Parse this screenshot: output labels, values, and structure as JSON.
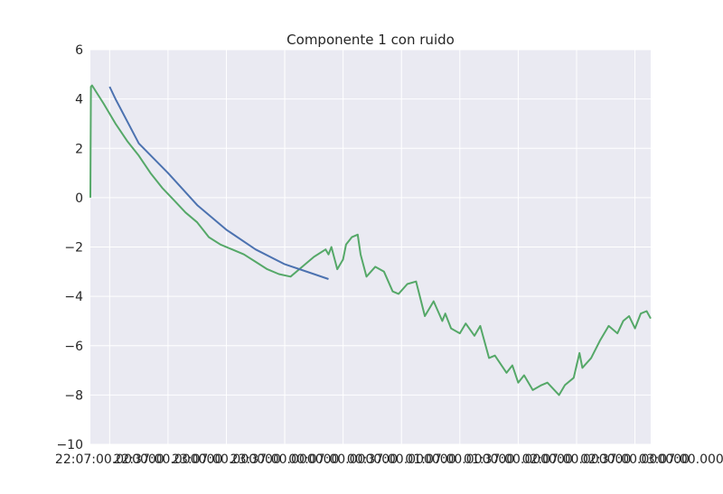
{
  "chart_data": {
    "type": "line",
    "title": "Componente 1 con ruido",
    "xlabel": "",
    "ylabel": "",
    "ylim": [
      -10,
      6
    ],
    "y_ticks": [
      6,
      4,
      2,
      0,
      -2,
      -4,
      -6,
      -8,
      -10
    ],
    "y_tick_labels": [
      "6",
      "4",
      "2",
      "0",
      "−2",
      "−4",
      "−6",
      "−8",
      "−10"
    ],
    "x_ticks": [
      0,
      1,
      2,
      3,
      4,
      5,
      6,
      7,
      8,
      9,
      10
    ],
    "x_tick_labels": [
      "22:07:00.000000",
      "22:37:00.000000",
      "23:07:00.000000",
      "23:37:00.000000",
      "00:07:00.000000",
      "00:37:00.000000",
      "01:07:00.000000",
      "01:37:00.000000",
      "02:07:00.000000",
      "02:37:00.000000",
      "03:07:00.000000"
    ],
    "xlim": [
      -0.33,
      9.27
    ],
    "grid": true,
    "background": "#eaeaf2",
    "series": [
      {
        "color": "#4c72b0",
        "x": [
          0.0,
          0.1,
          0.5,
          1.0,
          1.5,
          2.0,
          2.5,
          3.0,
          3.5,
          3.75
        ],
        "y": [
          4.5,
          4.0,
          2.2,
          1.0,
          -0.3,
          -1.3,
          -2.1,
          -2.7,
          -3.1,
          -3.3
        ]
      },
      {
        "color": "#55a868",
        "x": [
          -0.33,
          -0.32,
          -0.3,
          -0.1,
          0.1,
          0.3,
          0.5,
          0.7,
          0.9,
          1.1,
          1.3,
          1.5,
          1.7,
          1.9,
          2.1,
          2.3,
          2.5,
          2.7,
          2.9,
          3.1,
          3.3,
          3.5,
          3.7,
          3.75,
          3.8,
          3.9,
          4.0,
          4.05,
          4.15,
          4.25,
          4.3,
          4.4,
          4.55,
          4.7,
          4.85,
          4.95,
          5.1,
          5.25,
          5.4,
          5.55,
          5.7,
          5.75,
          5.85,
          6.0,
          6.1,
          6.25,
          6.35,
          6.5,
          6.6,
          6.8,
          6.9,
          7.0,
          7.1,
          7.25,
          7.4,
          7.5,
          7.7,
          7.8,
          7.95,
          8.05,
          8.1,
          8.25,
          8.4,
          8.55,
          8.7,
          8.8,
          8.9,
          9.0,
          9.1,
          9.2,
          9.27
        ],
        "y": [
          0.0,
          4.5,
          4.55,
          3.8,
          3.0,
          2.3,
          1.7,
          1.0,
          0.4,
          -0.1,
          -0.6,
          -1.0,
          -1.6,
          -1.9,
          -2.1,
          -2.3,
          -2.6,
          -2.9,
          -3.1,
          -3.2,
          -2.8,
          -2.4,
          -2.1,
          -2.3,
          -2.0,
          -2.9,
          -2.5,
          -1.9,
          -1.6,
          -1.5,
          -2.3,
          -3.2,
          -2.8,
          -3.0,
          -3.8,
          -3.9,
          -3.5,
          -3.4,
          -4.8,
          -4.2,
          -5.0,
          -4.7,
          -5.3,
          -5.5,
          -5.1,
          -5.6,
          -5.2,
          -6.5,
          -6.4,
          -7.1,
          -6.8,
          -7.5,
          -7.2,
          -7.8,
          -7.6,
          -7.5,
          -8.0,
          -7.6,
          -7.3,
          -6.3,
          -6.9,
          -6.5,
          -5.8,
          -5.2,
          -5.5,
          -5.0,
          -4.8,
          -5.3,
          -4.7,
          -4.6,
          -4.9
        ]
      }
    ]
  }
}
